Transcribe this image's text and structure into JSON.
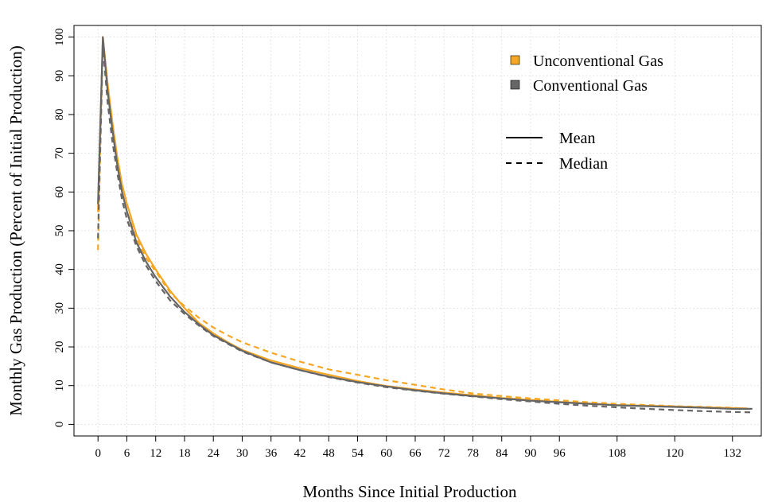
{
  "chart_data": {
    "type": "line",
    "xlabel": "Months Since Initial Production",
    "ylabel": "Monthly Gas Production (Percent of Initial Production)",
    "xlim": [
      -5,
      138
    ],
    "ylim": [
      -3,
      103
    ],
    "x_ticks": [
      0,
      6,
      12,
      18,
      24,
      30,
      36,
      42,
      48,
      54,
      60,
      66,
      72,
      78,
      84,
      90,
      96,
      108,
      120,
      132
    ],
    "y_ticks": [
      0,
      10,
      20,
      30,
      40,
      50,
      60,
      70,
      80,
      90,
      100
    ],
    "grid": true,
    "legend_position": "top-right",
    "legend": {
      "groups": [
        {
          "label": "Unconventional Gas",
          "color": "#f5a623"
        },
        {
          "label": "Conventional Gas",
          "color": "#666666"
        }
      ],
      "line_styles": [
        {
          "label": "Mean",
          "style": "solid"
        },
        {
          "label": "Median",
          "style": "dashed"
        }
      ]
    },
    "series": [
      {
        "group": "Unconventional Gas",
        "stat": "Mean",
        "color": "#f5a623",
        "dash": false,
        "x": [
          0,
          1,
          2,
          3,
          4,
          5,
          6,
          8,
          10,
          12,
          15,
          18,
          21,
          24,
          27,
          30,
          36,
          42,
          48,
          54,
          60,
          66,
          72,
          78,
          84,
          90,
          96,
          102,
          108,
          114,
          120,
          126,
          132,
          135
        ],
        "y": [
          55,
          100,
          88,
          78,
          69,
          62,
          57,
          49,
          44,
          40,
          34.5,
          30,
          26.2,
          23.5,
          21.2,
          19.2,
          16.5,
          14.5,
          12.8,
          11.2,
          9.9,
          9.0,
          8.2,
          7.5,
          6.8,
          6.3,
          5.8,
          5.4,
          5.0,
          4.8,
          4.6,
          4.4,
          4.2,
          4.1
        ]
      },
      {
        "group": "Unconventional Gas",
        "stat": "Median",
        "color": "#f5a623",
        "dash": true,
        "x": [
          0,
          1,
          2,
          3,
          4,
          5,
          6,
          8,
          10,
          12,
          15,
          18,
          21,
          24,
          27,
          30,
          36,
          42,
          48,
          54,
          60,
          66,
          72,
          78,
          84,
          90,
          96,
          102,
          108,
          114,
          120,
          126,
          132,
          135
        ],
        "y": [
          45,
          100,
          87,
          76,
          67,
          60,
          55,
          48,
          43,
          39.5,
          34,
          30.5,
          27.5,
          25,
          23,
          21.2,
          18.5,
          16.2,
          14.2,
          12.8,
          11.4,
          10.2,
          9.0,
          8.0,
          7.3,
          6.7,
          6.2,
          5.7,
          5.3,
          5.0,
          4.7,
          4.5,
          4.3,
          4.0
        ]
      },
      {
        "group": "Conventional Gas",
        "stat": "Mean",
        "color": "#666666",
        "dash": false,
        "x": [
          0,
          1,
          2,
          3,
          4,
          5,
          6,
          8,
          10,
          12,
          15,
          18,
          21,
          24,
          27,
          30,
          36,
          42,
          48,
          54,
          60,
          66,
          72,
          78,
          84,
          90,
          96,
          102,
          108,
          114,
          120,
          126,
          132,
          136
        ],
        "y": [
          57,
          100,
          86,
          76,
          67,
          60,
          55,
          47,
          42,
          38,
          33,
          29,
          25.8,
          23,
          21,
          19,
          16,
          14,
          12.3,
          10.9,
          9.8,
          8.8,
          8.0,
          7.3,
          6.7,
          6.1,
          5.7,
          5.3,
          4.9,
          4.7,
          4.5,
          4.3,
          4.0,
          4.0
        ]
      },
      {
        "group": "Conventional Gas",
        "stat": "Median",
        "color": "#666666",
        "dash": true,
        "x": [
          0,
          1,
          2,
          3,
          4,
          5,
          6,
          8,
          10,
          12,
          15,
          18,
          21,
          24,
          27,
          30,
          36,
          42,
          48,
          54,
          60,
          66,
          72,
          78,
          84,
          90,
          96,
          102,
          108,
          114,
          120,
          126,
          132,
          136
        ],
        "y": [
          48,
          98,
          83,
          73,
          65,
          58,
          53,
          46,
          41,
          37,
          32,
          28.5,
          25.5,
          22.8,
          20.8,
          18.8,
          16,
          14,
          12.2,
          10.8,
          9.6,
          8.7,
          7.9,
          7.2,
          6.5,
          5.9,
          5.3,
          4.8,
          4.4,
          4.0,
          3.7,
          3.4,
          3.2,
          3.1
        ]
      }
    ]
  }
}
